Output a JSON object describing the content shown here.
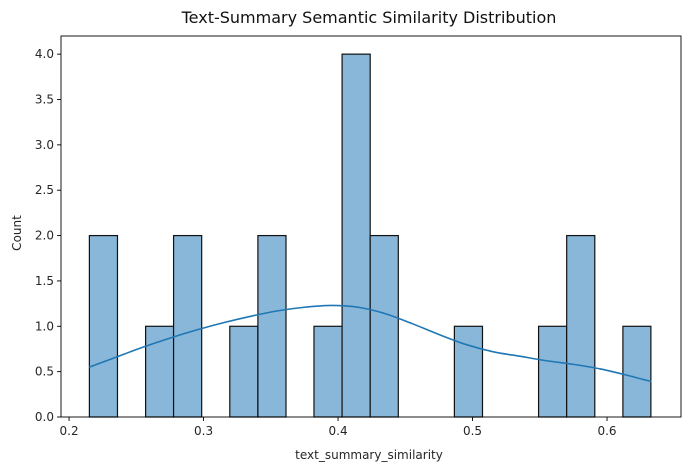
{
  "chart_data": {
    "type": "bar",
    "title": "Text-Summary Semantic Similarity Distribution",
    "xlabel": "text_summary_similarity",
    "ylabel": "Count",
    "xlim": [
      0.194,
      0.655
    ],
    "ylim": [
      0,
      4.2
    ],
    "x_ticks": [
      0.2,
      0.3,
      0.4,
      0.5,
      0.6
    ],
    "x_tick_labels": [
      "0.2",
      "0.3",
      "0.4",
      "0.5",
      "0.6"
    ],
    "y_ticks": [
      0,
      0.5,
      1,
      1.5,
      2,
      2.5,
      3,
      3.5,
      4
    ],
    "y_tick_labels": [
      "0.0",
      "0.5",
      "1.0",
      "1.5",
      "2.0",
      "2.5",
      "3.0",
      "3.5",
      "4.0"
    ],
    "bins": [
      {
        "x0": 0.2151,
        "x1": 0.236,
        "count": 2
      },
      {
        "x0": 0.236,
        "x1": 0.2569,
        "count": 0
      },
      {
        "x0": 0.2569,
        "x1": 0.2777,
        "count": 1
      },
      {
        "x0": 0.2777,
        "x1": 0.2986,
        "count": 2
      },
      {
        "x0": 0.2986,
        "x1": 0.3195,
        "count": 0
      },
      {
        "x0": 0.3195,
        "x1": 0.3404,
        "count": 1
      },
      {
        "x0": 0.3404,
        "x1": 0.3613,
        "count": 2
      },
      {
        "x0": 0.3613,
        "x1": 0.3821,
        "count": 0
      },
      {
        "x0": 0.3821,
        "x1": 0.403,
        "count": 1
      },
      {
        "x0": 0.403,
        "x1": 0.4239,
        "count": 4
      },
      {
        "x0": 0.4239,
        "x1": 0.4448,
        "count": 2
      },
      {
        "x0": 0.4448,
        "x1": 0.4656,
        "count": 0
      },
      {
        "x0": 0.4656,
        "x1": 0.4865,
        "count": 0
      },
      {
        "x0": 0.4865,
        "x1": 0.5074,
        "count": 1
      },
      {
        "x0": 0.5074,
        "x1": 0.5283,
        "count": 0
      },
      {
        "x0": 0.5283,
        "x1": 0.5491,
        "count": 0
      },
      {
        "x0": 0.5491,
        "x1": 0.57,
        "count": 1
      },
      {
        "x0": 0.57,
        "x1": 0.5909,
        "count": 2
      },
      {
        "x0": 0.5909,
        "x1": 0.6118,
        "count": 0
      },
      {
        "x0": 0.6118,
        "x1": 0.6326,
        "count": 1
      }
    ],
    "kde": {
      "x": [
        0.215,
        0.235,
        0.255,
        0.275,
        0.295,
        0.315,
        0.335,
        0.355,
        0.375,
        0.395,
        0.415,
        0.435,
        0.455,
        0.475,
        0.495,
        0.515,
        0.535,
        0.555,
        0.575,
        0.595,
        0.615,
        0.633
      ],
      "y": [
        0.55,
        0.66,
        0.77,
        0.87,
        0.96,
        1.04,
        1.11,
        1.17,
        1.21,
        1.23,
        1.21,
        1.14,
        1.03,
        0.91,
        0.8,
        0.72,
        0.67,
        0.62,
        0.58,
        0.53,
        0.46,
        0.39
      ]
    },
    "colors": {
      "bar_fill": "#89b7d9",
      "bar_edge": "#111111",
      "kde_line": "#1f77b4"
    },
    "grid": false,
    "legend": "none"
  }
}
